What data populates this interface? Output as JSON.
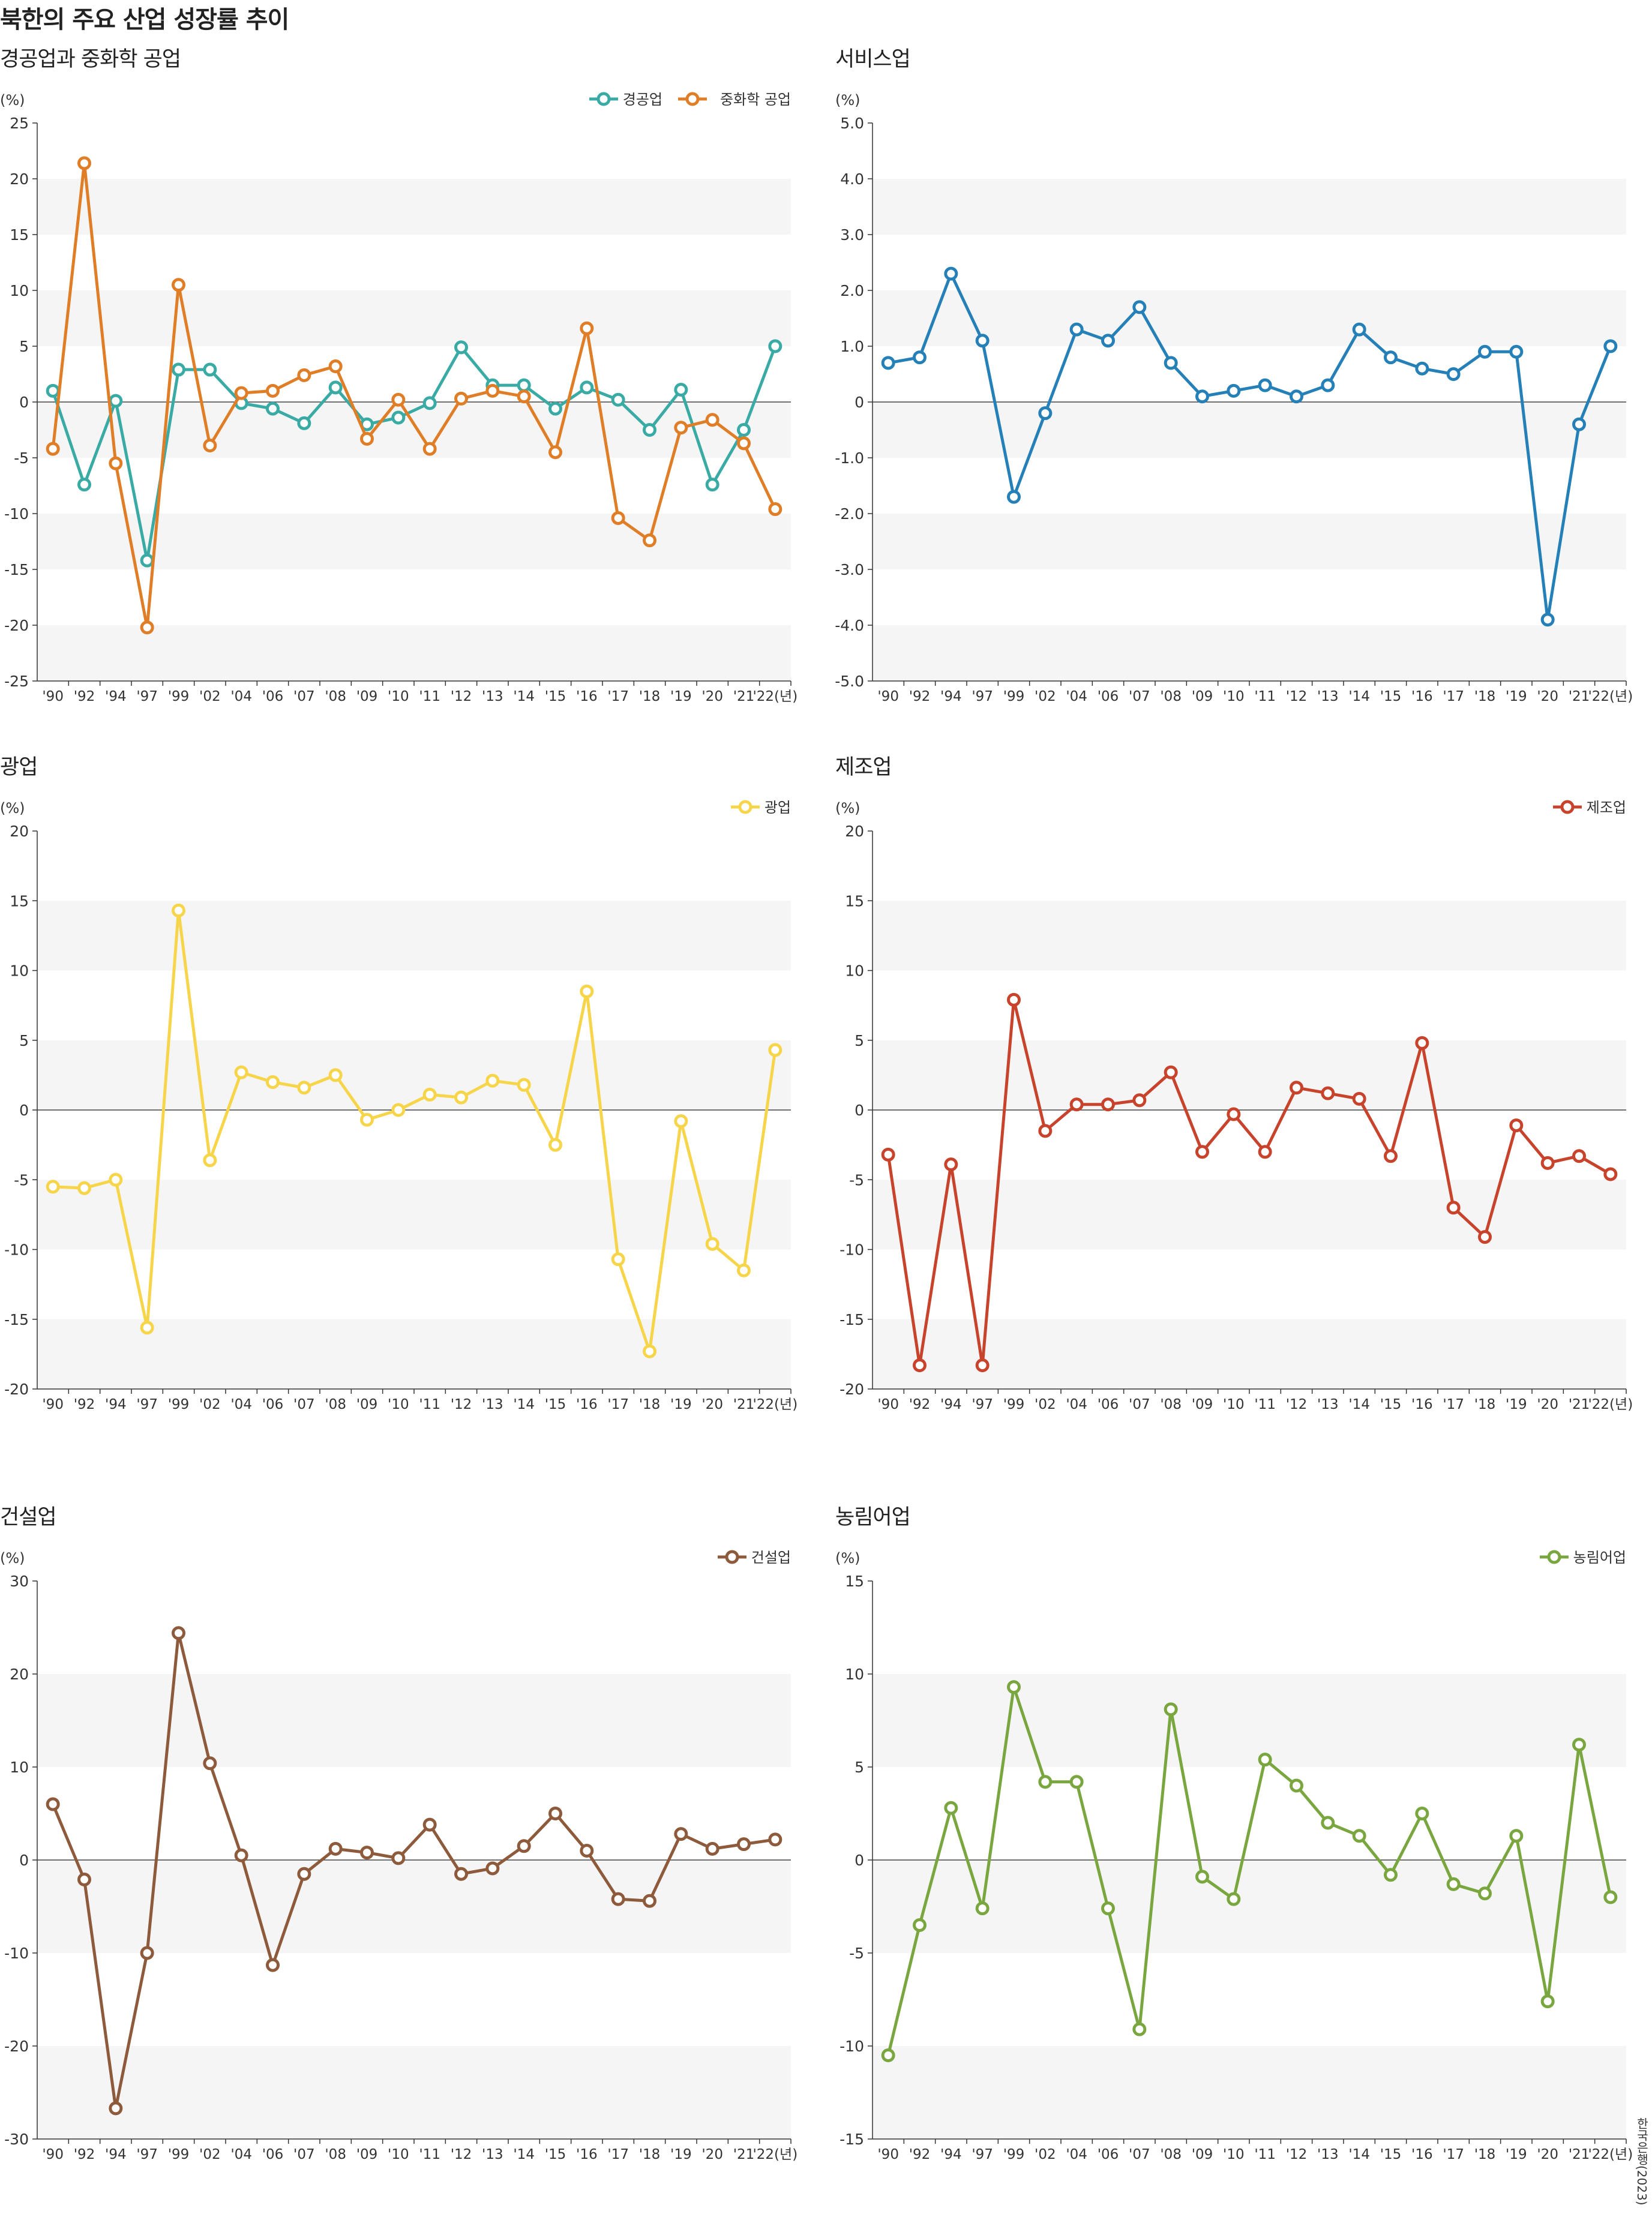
{
  "title": "북한의 주요 산업 성장률 추이",
  "source": "한국은행(2023)",
  "chart_data": [
    {
      "type": "line",
      "title": "경공업과 중화학 공업",
      "unit": "(%)",
      "x": [
        "'90",
        "'92",
        "'94",
        "'97",
        "'99",
        "'02",
        "'04",
        "'06",
        "'07",
        "'08",
        "'09",
        "'10",
        "'11",
        "'12",
        "'13",
        "'14",
        "'15",
        "'16",
        "'17",
        "'18",
        "'19",
        "'20",
        "'21",
        "'22(년)"
      ],
      "ylim": [
        -25,
        25
      ],
      "yticks": [
        "25",
        "20",
        "15",
        "10",
        "5",
        "0",
        "-5",
        "-10",
        "-15",
        "-20",
        "-25"
      ],
      "legend_position": "top-right",
      "grid": "alternating bands",
      "series": [
        {
          "name": "경공업",
          "color": "#3aaaa5",
          "values": [
            1.0,
            -7.4,
            0.1,
            -14.2,
            2.9,
            2.9,
            -0.1,
            -0.6,
            -1.9,
            1.3,
            -2.0,
            -1.4,
            -0.1,
            4.9,
            1.5,
            1.5,
            -0.6,
            1.3,
            0.2,
            -2.5,
            1.1,
            -7.4,
            -2.5,
            5.0
          ]
        },
        {
          "name": "중화학 공업",
          "color": "#e07d27",
          "values": [
            -4.2,
            21.4,
            -5.5,
            -20.2,
            10.5,
            -3.9,
            0.8,
            1.0,
            2.4,
            3.2,
            -3.3,
            0.2,
            -4.2,
            0.3,
            1.0,
            0.5,
            -4.5,
            6.6,
            -10.4,
            -12.4,
            -2.3,
            -1.6,
            -3.7,
            -9.6
          ]
        }
      ]
    },
    {
      "type": "line",
      "title": "서비스업",
      "unit": "(%)",
      "x": [
        "'90",
        "'92",
        "'94",
        "'97",
        "'99",
        "'02",
        "'04",
        "'06",
        "'07",
        "'08",
        "'09",
        "'10",
        "'11",
        "'12",
        "'13",
        "'14",
        "'15",
        "'16",
        "'17",
        "'18",
        "'19",
        "'20",
        "'21",
        "'22(년)"
      ],
      "ylim": [
        -5,
        5
      ],
      "yticks": [
        "5.0",
        "4.0",
        "3.0",
        "2.0",
        "1.0",
        "0",
        "-1.0",
        "-2.0",
        "-3.0",
        "-4.0",
        "-5.0"
      ],
      "grid": "alternating bands",
      "series": [
        {
          "color": "#2580b8",
          "values": [
            0.7,
            0.8,
            2.3,
            1.1,
            -1.7,
            -0.2,
            1.3,
            1.1,
            1.7,
            0.7,
            0.1,
            0.2,
            0.3,
            0.1,
            0.3,
            1.3,
            0.8,
            0.6,
            0.5,
            0.9,
            0.9,
            -3.9,
            -0.4,
            1.0
          ]
        }
      ]
    },
    {
      "type": "line",
      "title": "광업",
      "unit": "(%)",
      "x": [
        "'90",
        "'92",
        "'94",
        "'97",
        "'99",
        "'02",
        "'04",
        "'06",
        "'07",
        "'08",
        "'09",
        "'10",
        "'11",
        "'12",
        "'13",
        "'14",
        "'15",
        "'16",
        "'17",
        "'18",
        "'19",
        "'20",
        "'21",
        "'22(년)"
      ],
      "ylim": [
        -20,
        20
      ],
      "yticks": [
        "20",
        "15",
        "10",
        "5",
        "0",
        "-5",
        "-10",
        "-15",
        "-20"
      ],
      "legend_position": "top-right",
      "grid": "alternating bands",
      "series": [
        {
          "name": "광업",
          "color": "#f7d54a",
          "values": [
            -5.5,
            -5.6,
            -5.0,
            -15.6,
            14.3,
            -3.6,
            2.7,
            2.0,
            1.6,
            2.5,
            -0.7,
            0.0,
            1.1,
            0.9,
            2.1,
            1.8,
            -2.5,
            8.5,
            -10.7,
            -17.3,
            -0.8,
            -9.6,
            -11.5,
            4.3
          ]
        }
      ]
    },
    {
      "type": "line",
      "title": "제조업",
      "unit": "(%)",
      "x": [
        "'90",
        "'92",
        "'94",
        "'97",
        "'99",
        "'02",
        "'04",
        "'06",
        "'07",
        "'08",
        "'09",
        "'10",
        "'11",
        "'12",
        "'13",
        "'14",
        "'15",
        "'16",
        "'17",
        "'18",
        "'19",
        "'20",
        "'21",
        "'22(년)"
      ],
      "ylim": [
        -20,
        20
      ],
      "yticks": [
        "20",
        "15",
        "10",
        "5",
        "0",
        "-5",
        "-10",
        "-15",
        "-20"
      ],
      "legend_position": "top-right",
      "grid": "alternating bands",
      "series": [
        {
          "name": "제조업",
          "color": "#c8432b",
          "values": [
            -3.2,
            -18.3,
            -3.9,
            -18.3,
            7.9,
            -1.5,
            0.4,
            0.4,
            0.7,
            2.7,
            -3.0,
            -0.3,
            -3.0,
            1.6,
            1.2,
            0.8,
            -3.3,
            4.8,
            -7.0,
            -9.1,
            -1.1,
            -3.8,
            -3.3,
            -4.6
          ]
        }
      ]
    },
    {
      "type": "line",
      "title": "건설업",
      "unit": "(%)",
      "x": [
        "'90",
        "'92",
        "'94",
        "'97",
        "'99",
        "'02",
        "'04",
        "'06",
        "'07",
        "'08",
        "'09",
        "'10",
        "'11",
        "'12",
        "'13",
        "'14",
        "'15",
        "'16",
        "'17",
        "'18",
        "'19",
        "'20",
        "'21",
        "'22(년)"
      ],
      "ylim": [
        -30,
        30
      ],
      "yticks": [
        "30",
        "20",
        "10",
        "0",
        "-10",
        "-20",
        "-30"
      ],
      "legend_position": "top-right",
      "grid": "alternating bands",
      "series": [
        {
          "name": "건설업",
          "color": "#8d5a3b",
          "values": [
            6.0,
            -2.1,
            -26.7,
            -10.0,
            24.4,
            10.4,
            0.5,
            -11.3,
            -1.5,
            1.2,
            0.8,
            0.2,
            3.8,
            -1.5,
            -0.9,
            1.5,
            5.0,
            1.0,
            -4.2,
            -4.4,
            2.8,
            1.2,
            1.7,
            2.2
          ]
        }
      ]
    },
    {
      "type": "line",
      "title": "농림어업",
      "unit": "(%)",
      "x": [
        "'90",
        "'92",
        "'94",
        "'97",
        "'99",
        "'02",
        "'04",
        "'06",
        "'07",
        "'08",
        "'09",
        "'10",
        "'11",
        "'12",
        "'13",
        "'14",
        "'15",
        "'16",
        "'17",
        "'18",
        "'19",
        "'20",
        "'21",
        "'22(년)"
      ],
      "ylim": [
        -15,
        15
      ],
      "yticks": [
        "15",
        "10",
        "5",
        "0",
        "-5",
        "-10",
        "-15"
      ],
      "legend_position": "top-right",
      "grid": "alternating bands",
      "series": [
        {
          "name": "농림어업",
          "color": "#7aa640",
          "values": [
            -10.5,
            -3.5,
            2.8,
            -2.6,
            9.3,
            4.2,
            4.2,
            -2.6,
            -9.1,
            8.1,
            -0.9,
            -2.1,
            5.4,
            4.0,
            2.0,
            1.3,
            -0.8,
            2.5,
            -1.3,
            -1.8,
            1.3,
            -7.6,
            6.2,
            -2.0
          ]
        }
      ]
    }
  ]
}
